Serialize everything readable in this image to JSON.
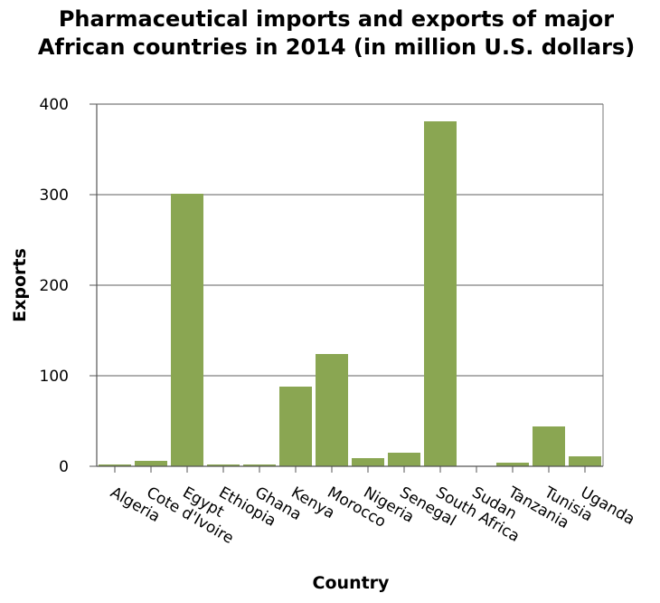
{
  "chart_data": {
    "type": "bar",
    "title": "Pharmaceutical imports and exports of major African countries in 2014 (in million U.S. dollars)",
    "xlabel": "Country",
    "ylabel": "Exports",
    "categories": [
      "Algeria",
      "Cote d'Ivoire",
      "Egypt",
      "Ethiopia",
      "Ghana",
      "Kenya",
      "Morocco",
      "Nigeria",
      "Senegal",
      "South Africa",
      "Sudan",
      "Tanzania",
      "Tunisia",
      "Uganda"
    ],
    "values": [
      2,
      6,
      301,
      2,
      2,
      88,
      124,
      9,
      15,
      381,
      0.5,
      4,
      44,
      11
    ],
    "ylim": [
      0,
      400
    ],
    "yticks": [
      0,
      100,
      200,
      300,
      400
    ],
    "grid": true,
    "legend": "none",
    "bar_color": "#8aa652",
    "grid_color": "#7f7f7f"
  }
}
